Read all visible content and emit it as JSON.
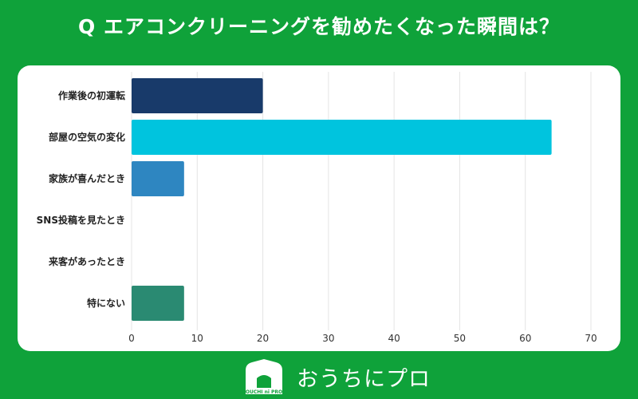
{
  "title": "Q エアコンクリーニングを勧めたくなった瞬間は？",
  "colors": {
    "background": "#0fa23a",
    "panel": "#ffffff",
    "grid": "#e4e4e4",
    "axis_text": "#333333"
  },
  "chart_data": {
    "type": "bar",
    "orientation": "horizontal",
    "title": "Q エアコンクリーニングを勧めたくなった瞬間は？",
    "xlabel": "",
    "ylabel": "",
    "categories": [
      "作業後の初運転",
      "部屋の空気の変化",
      "家族が喜んだとき",
      "SNS投稿を見たとき",
      "来客があったとき",
      "特にない"
    ],
    "values": [
      20,
      64,
      8,
      0,
      0,
      8
    ],
    "bar_colors": [
      "#183a6a",
      "#00c4de",
      "#2e86c1",
      "#2e86c1",
      "#2e86c1",
      "#2a8a72"
    ],
    "xlim": [
      0,
      70
    ],
    "ticks": [
      0,
      10,
      20,
      30,
      40,
      50,
      60,
      70
    ],
    "grid": true
  },
  "footer": {
    "logo_text": "OUCHI ni PRO",
    "logo_icon": "house-icon",
    "brand": "おうちにプロ"
  }
}
